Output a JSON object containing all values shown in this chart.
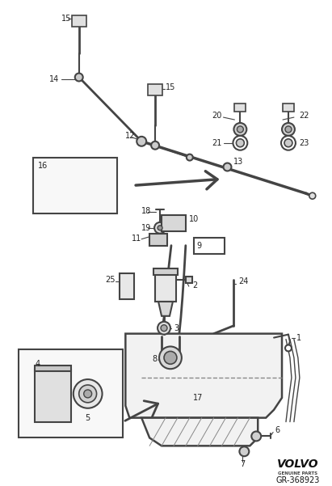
{
  "bg_color": "#ffffff",
  "lc": "#444444",
  "fig_width": 4.11,
  "fig_height": 6.01,
  "dpi": 100,
  "volvo_text": "VOLVO",
  "service_text": "GENUINE PARTS",
  "ref_text": "GR-368923"
}
